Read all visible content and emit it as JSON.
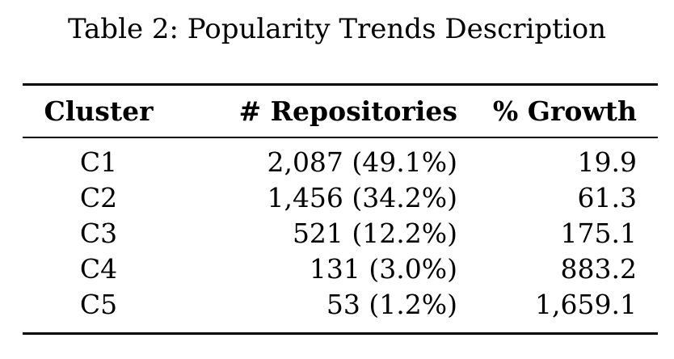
{
  "caption": "Table 2: Popularity Trends Description",
  "table": {
    "headers": [
      "Cluster",
      "# Repositories",
      "% Growth"
    ],
    "rows": [
      {
        "cluster": "C1",
        "repositories": "2,087 (49.1%)",
        "growth": "19.9"
      },
      {
        "cluster": "C2",
        "repositories": "1,456 (34.2%)",
        "growth": "61.3"
      },
      {
        "cluster": "C3",
        "repositories": "521 (12.2%)",
        "growth": "175.1"
      },
      {
        "cluster": "C4",
        "repositories": "131 (3.0%)",
        "growth": "883.2"
      },
      {
        "cluster": "C5",
        "repositories": "53 (1.2%)",
        "growth": "1,659.1"
      }
    ]
  }
}
